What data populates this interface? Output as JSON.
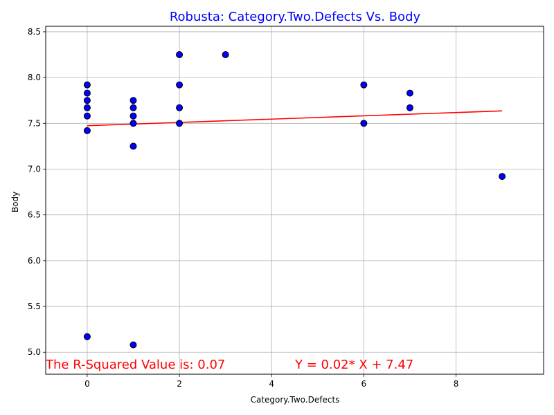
{
  "chart_data": {
    "type": "scatter",
    "title": "Robusta: Category.Two.Defects Vs. Body",
    "xlabel": "Category.Two.Defects",
    "ylabel": "Body",
    "xlim": [
      -0.9,
      9.9
    ],
    "ylim": [
      4.76,
      8.56
    ],
    "xticks": [
      0,
      2,
      4,
      6,
      8
    ],
    "yticks": [
      5.0,
      5.5,
      6.0,
      6.5,
      7.0,
      7.5,
      8.0,
      8.5
    ],
    "grid": true,
    "points": [
      {
        "x": 0,
        "y": 7.92
      },
      {
        "x": 0,
        "y": 7.83
      },
      {
        "x": 0,
        "y": 7.75
      },
      {
        "x": 0,
        "y": 7.67
      },
      {
        "x": 0,
        "y": 7.58
      },
      {
        "x": 0,
        "y": 7.42
      },
      {
        "x": 0,
        "y": 5.17
      },
      {
        "x": 1,
        "y": 7.75
      },
      {
        "x": 1,
        "y": 7.67
      },
      {
        "x": 1,
        "y": 7.58
      },
      {
        "x": 1,
        "y": 7.5
      },
      {
        "x": 1,
        "y": 7.25
      },
      {
        "x": 1,
        "y": 5.08
      },
      {
        "x": 2,
        "y": 8.25
      },
      {
        "x": 2,
        "y": 7.92
      },
      {
        "x": 2,
        "y": 7.67
      },
      {
        "x": 2,
        "y": 7.5
      },
      {
        "x": 3,
        "y": 8.25
      },
      {
        "x": 6,
        "y": 7.92
      },
      {
        "x": 6,
        "y": 7.5
      },
      {
        "x": 7,
        "y": 7.83
      },
      {
        "x": 7,
        "y": 7.67
      },
      {
        "x": 9,
        "y": 6.92
      }
    ],
    "regression": {
      "slope": 0.018,
      "intercept": 7.474,
      "x_range": [
        0,
        9
      ]
    },
    "annotations": {
      "r_squared": "The R-Squared Value is: 0.07",
      "equation": "Y = 0.02* X + 7.47"
    },
    "colors": {
      "title": "#0000ff",
      "point_fill": "#0000ff",
      "point_edge": "#000000",
      "regression_line": "#ff0000",
      "annotation": "#ff0000",
      "grid": "#b0b0b0"
    }
  }
}
